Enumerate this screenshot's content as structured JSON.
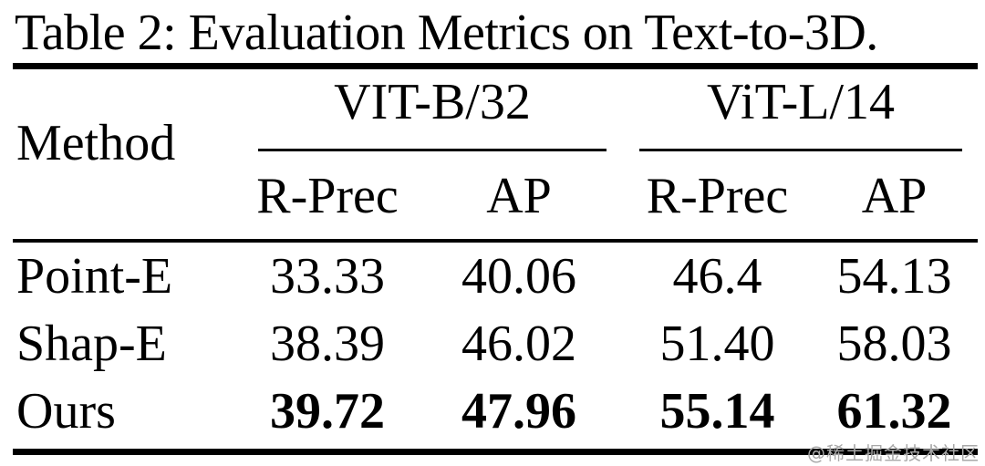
{
  "title": "Table 2: Evaluation Metrics on Text-to-3D.",
  "table": {
    "method_header": "Method",
    "groups": [
      {
        "label": "VIT-B/32",
        "subcolumns": [
          "R-Prec",
          "AP"
        ]
      },
      {
        "label": "ViT-L/14",
        "subcolumns": [
          "R-Prec",
          "AP"
        ]
      }
    ],
    "rows": [
      {
        "method": "Point-E",
        "values": [
          "33.33",
          "40.06",
          "46.4",
          "54.13"
        ],
        "bold_values": false
      },
      {
        "method": "Shap-E",
        "values": [
          "38.39",
          "46.02",
          "51.40",
          "58.03"
        ],
        "bold_values": false
      },
      {
        "method": "Ours",
        "values": [
          "39.72",
          "47.96",
          "55.14",
          "61.32"
        ],
        "bold_values": true
      }
    ]
  },
  "watermark": "@稀土掘金技术社区",
  "colors": {
    "text": "#000000",
    "rules": "#000000",
    "watermark": "#a8a8a8",
    "background": "#ffffff"
  },
  "chart_data": {
    "type": "table",
    "title": "Table 2: Evaluation Metrics on Text-to-3D.",
    "columns": [
      "Method",
      "VIT-B/32 R-Prec",
      "VIT-B/32 AP",
      "ViT-L/14 R-Prec",
      "ViT-L/14 AP"
    ],
    "rows": [
      [
        "Point-E",
        33.33,
        40.06,
        46.4,
        54.13
      ],
      [
        "Shap-E",
        38.39,
        46.02,
        51.4,
        58.03
      ],
      [
        "Ours",
        39.72,
        47.96,
        55.14,
        61.32
      ]
    ],
    "emphasis": "Ours row values are bold (best results)"
  }
}
